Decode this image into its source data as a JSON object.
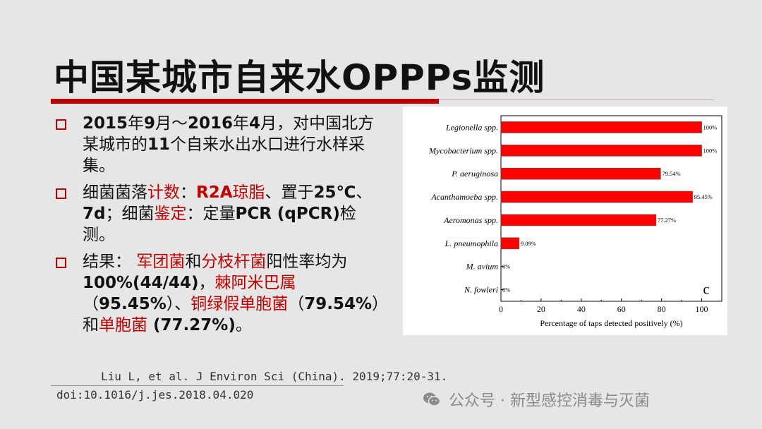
{
  "title": "中国某城市自来水OPPPs监测",
  "bullets": [
    {
      "segments": [
        {
          "text": "2015",
          "bold": true
        },
        {
          "text": "年"
        },
        {
          "text": "9",
          "bold": true
        },
        {
          "text": "月～"
        },
        {
          "text": "2016",
          "bold": true
        },
        {
          "text": "年"
        },
        {
          "text": "4",
          "bold": true
        },
        {
          "text": "月，对中国北方某城市的"
        },
        {
          "text": "11",
          "bold": true
        },
        {
          "text": "个自来水出水口进行水样采集。"
        }
      ]
    },
    {
      "segments": [
        {
          "text": "细菌菌落"
        },
        {
          "text": "计数",
          "red": true
        },
        {
          "text": "："
        },
        {
          "text": "R2A",
          "bold": true,
          "red": true
        },
        {
          "text": "琼脂",
          "red": true
        },
        {
          "text": "、置于"
        },
        {
          "text": "25℃",
          "bold": true
        },
        {
          "text": "、"
        },
        {
          "text": "7d",
          "bold": true
        },
        {
          "text": "；细菌"
        },
        {
          "text": "鉴定",
          "red": true
        },
        {
          "text": "：定量"
        },
        {
          "text": "PCR (qPCR)",
          "bold": true
        },
        {
          "text": "检测。"
        }
      ]
    },
    {
      "segments": [
        {
          "text": "结果： "
        },
        {
          "text": "军团菌",
          "red": true
        },
        {
          "text": "和"
        },
        {
          "text": "分枝杆菌",
          "red": true
        },
        {
          "text": "阳性率均为"
        },
        {
          "text": "100%(44/44)",
          "bold": true
        },
        {
          "text": "，"
        },
        {
          "text": "棘阿米巴属",
          "red": true
        },
        {
          "text": "（"
        },
        {
          "text": "95.45%",
          "bold": true
        },
        {
          "text": "）、"
        },
        {
          "text": "铜绿假单胞菌",
          "red": true
        },
        {
          "text": "（"
        },
        {
          "text": "79.54%",
          "bold": true
        },
        {
          "text": "）和"
        },
        {
          "text": "单胞菌",
          "red": true
        },
        {
          "text": " (77.27%)",
          "bold": true
        },
        {
          "text": "。"
        }
      ]
    }
  ],
  "citation": {
    "line1": "Liu L, et al. J Environ Sci (China). 2019;77:20-31.",
    "line2": "doi:10.1016/j.jes.2018.04.020"
  },
  "watermark": {
    "text": "公众号 · 新型感控消毒与灭菌",
    "icon": "wechat-icon"
  },
  "colors": {
    "accent_red": "#c00000",
    "bar_red": "#ff0000",
    "background": "#e6e6e6"
  },
  "chart_data": {
    "type": "bar",
    "orientation": "horizontal",
    "categories": [
      "Legionella spp.",
      "Mycobacterium spp.",
      "P. aeruginosa",
      "Acanthamoeba spp.",
      "Aeromonas spp.",
      "L. pneumophila",
      "M. avium",
      "N. fowleri"
    ],
    "values": [
      100,
      100,
      79.54,
      95.45,
      77.27,
      9.09,
      0,
      0
    ],
    "value_labels": [
      "100%",
      "100%",
      "79.54%",
      "95.45%",
      "77.27%",
      "9.09%",
      "0%",
      "0%"
    ],
    "panel_label": "c",
    "xlabel": "Percentage of taps detected positively (%)",
    "xlim": [
      0,
      110
    ],
    "xticks": [
      0,
      20,
      40,
      60,
      80,
      100
    ],
    "grid": false,
    "bar_color": "#ff0000"
  }
}
